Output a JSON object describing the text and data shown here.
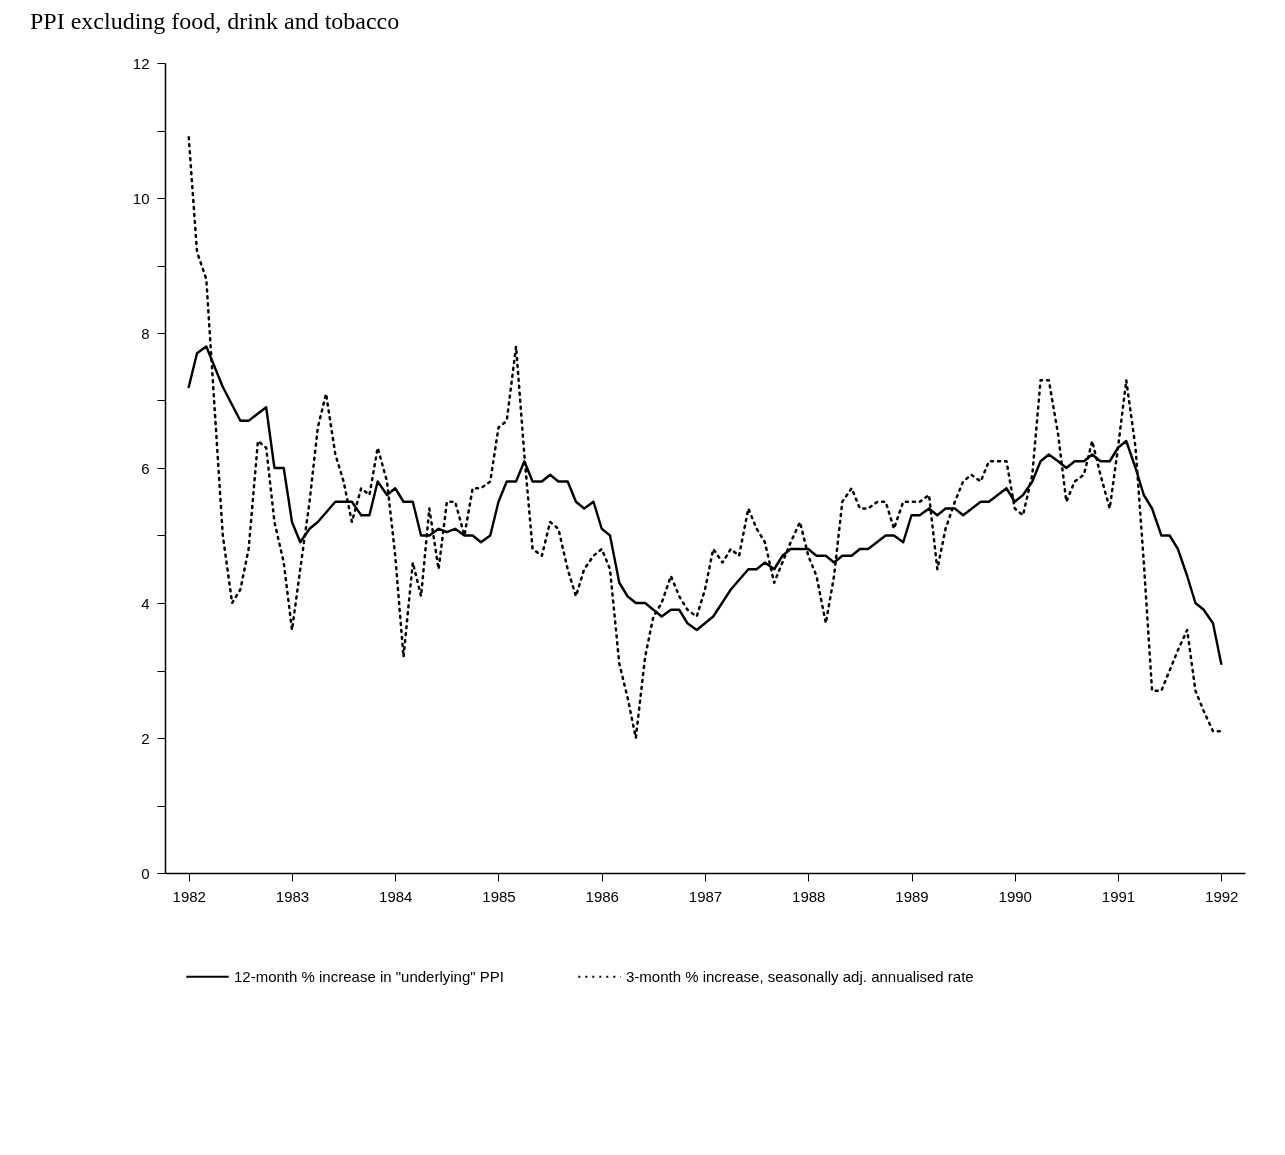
{
  "chart_data": {
    "type": "line",
    "title": "PPI excluding food, drink and tobacco",
    "xlim": [
      1981.77,
      1992.23
    ],
    "xticks": [
      1982,
      1983,
      1984,
      1985,
      1986,
      1987,
      1988,
      1989,
      1990,
      1991,
      1992
    ],
    "ylim": [
      0,
      12
    ],
    "yticks": [
      0,
      {
        "value": 1,
        "label": null
      },
      2,
      {
        "value": 3,
        "label": null
      },
      4,
      {
        "value": 5,
        "label": null
      },
      6,
      {
        "value": 7,
        "label": null
      },
      8,
      {
        "value": 9,
        "label": null
      },
      10,
      {
        "value": 11,
        "label": null
      },
      12
    ],
    "grid": false,
    "legend": "bottom",
    "marker": "none",
    "series": [
      {
        "name": "12-month % increase in \"underlying\" PPI",
        "color": "#000000",
        "line_style": "solid",
        "x": [
          1982.0,
          1982.08,
          1982.17,
          1982.33,
          1982.5,
          1982.58,
          1982.75,
          1982.83,
          1982.92,
          1983.0,
          1983.08,
          1983.17,
          1983.25,
          1983.42,
          1983.58,
          1983.67,
          1983.75,
          1983.83,
          1983.92,
          1984.0,
          1984.08,
          1984.17,
          1984.25,
          1984.33,
          1984.42,
          1984.5,
          1984.58,
          1984.67,
          1984.75,
          1984.83,
          1984.92,
          1985.0,
          1985.08,
          1985.17,
          1985.25,
          1985.33,
          1985.42,
          1985.5,
          1985.58,
          1985.67,
          1985.75,
          1985.83,
          1985.92,
          1986.0,
          1986.08,
          1986.17,
          1986.25,
          1986.33,
          1986.42,
          1986.5,
          1986.58,
          1986.67,
          1986.75,
          1986.83,
          1986.92,
          1987.0,
          1987.08,
          1987.25,
          1987.42,
          1987.5,
          1987.58,
          1987.67,
          1987.75,
          1987.83,
          1988.0,
          1988.08,
          1988.17,
          1988.25,
          1988.33,
          1988.42,
          1988.5,
          1988.58,
          1988.75,
          1988.83,
          1988.92,
          1989.0,
          1989.08,
          1989.17,
          1989.25,
          1989.33,
          1989.42,
          1989.5,
          1989.67,
          1989.75,
          1989.92,
          1990.0,
          1990.08,
          1990.17,
          1990.25,
          1990.33,
          1990.42,
          1990.5,
          1990.58,
          1990.67,
          1990.75,
          1990.83,
          1990.92,
          1991.0,
          1991.08,
          1991.17,
          1991.25,
          1991.33,
          1991.42,
          1991.5,
          1991.58,
          1991.67,
          1991.75,
          1991.83,
          1991.92,
          1992.0
        ],
        "values": [
          7.2,
          7.7,
          7.8,
          7.2,
          6.7,
          6.7,
          6.9,
          6.0,
          6.0,
          5.2,
          4.9,
          5.1,
          5.2,
          5.5,
          5.5,
          5.3,
          5.3,
          5.8,
          5.6,
          5.7,
          5.5,
          5.5,
          5.0,
          5.0,
          5.1,
          5.05,
          5.1,
          5.0,
          5.0,
          4.9,
          5.0,
          5.5,
          5.8,
          5.8,
          6.1,
          5.8,
          5.8,
          5.9,
          5.8,
          5.8,
          5.5,
          5.4,
          5.5,
          5.1,
          5.0,
          4.3,
          4.1,
          4.0,
          4.0,
          3.9,
          3.8,
          3.9,
          3.9,
          3.7,
          3.6,
          3.7,
          3.8,
          4.2,
          4.5,
          4.5,
          4.6,
          4.5,
          4.7,
          4.8,
          4.8,
          4.7,
          4.7,
          4.6,
          4.7,
          4.7,
          4.8,
          4.8,
          5.0,
          5.0,
          4.9,
          5.3,
          5.3,
          5.4,
          5.3,
          5.4,
          5.4,
          5.3,
          5.5,
          5.5,
          5.7,
          5.5,
          5.6,
          5.8,
          6.1,
          6.2,
          6.1,
          6.0,
          6.1,
          6.1,
          6.2,
          6.1,
          6.1,
          6.3,
          6.4,
          6.0,
          5.6,
          5.4,
          5.0,
          5.0,
          4.8,
          4.4,
          4.0,
          3.9,
          3.7,
          3.1
        ]
      },
      {
        "name": "3-month % increase, seasonally adj. annualised rate",
        "color": "#000000",
        "line_style": "dotted",
        "x": [
          1982.0,
          1982.08,
          1982.17,
          1982.25,
          1982.33,
          1982.42,
          1982.5,
          1982.58,
          1982.67,
          1982.75,
          1982.83,
          1982.92,
          1983.0,
          1983.08,
          1983.17,
          1983.25,
          1983.33,
          1983.42,
          1983.5,
          1983.58,
          1983.67,
          1983.75,
          1983.83,
          1983.92,
          1984.0,
          1984.08,
          1984.17,
          1984.25,
          1984.33,
          1984.42,
          1984.5,
          1984.58,
          1984.67,
          1984.75,
          1984.83,
          1984.92,
          1985.0,
          1985.08,
          1985.17,
          1985.25,
          1985.33,
          1985.42,
          1985.5,
          1985.58,
          1985.67,
          1985.75,
          1985.83,
          1985.92,
          1986.0,
          1986.08,
          1986.17,
          1986.25,
          1986.33,
          1986.42,
          1986.5,
          1986.58,
          1986.67,
          1986.75,
          1986.83,
          1986.92,
          1987.0,
          1987.08,
          1987.17,
          1987.25,
          1987.33,
          1987.42,
          1987.5,
          1987.58,
          1987.67,
          1987.75,
          1987.83,
          1987.92,
          1988.0,
          1988.08,
          1988.17,
          1988.25,
          1988.33,
          1988.42,
          1988.5,
          1988.58,
          1988.67,
          1988.75,
          1988.83,
          1988.92,
          1989.0,
          1989.08,
          1989.17,
          1989.25,
          1989.33,
          1989.42,
          1989.5,
          1989.58,
          1989.67,
          1989.75,
          1989.83,
          1989.92,
          1990.0,
          1990.08,
          1990.17,
          1990.25,
          1990.33,
          1990.42,
          1990.5,
          1990.58,
          1990.67,
          1990.75,
          1990.83,
          1990.92,
          1991.0,
          1991.08,
          1991.17,
          1991.25,
          1991.33,
          1991.42,
          1991.5,
          1991.58,
          1991.67,
          1991.75,
          1991.83,
          1991.92,
          1992.0
        ],
        "values": [
          10.9,
          9.2,
          8.8,
          6.9,
          5.0,
          4.0,
          4.2,
          4.8,
          6.4,
          6.3,
          5.2,
          4.6,
          3.6,
          4.5,
          5.5,
          6.6,
          7.1,
          6.2,
          5.8,
          5.2,
          5.7,
          5.6,
          6.3,
          5.8,
          4.7,
          3.2,
          4.6,
          4.1,
          5.4,
          4.5,
          5.5,
          5.5,
          5.0,
          5.7,
          5.7,
          5.8,
          6.6,
          6.7,
          7.8,
          6.2,
          4.8,
          4.7,
          5.2,
          5.1,
          4.5,
          4.1,
          4.5,
          4.7,
          4.8,
          4.5,
          3.1,
          2.6,
          2.0,
          3.2,
          3.8,
          4.0,
          4.4,
          4.1,
          3.9,
          3.8,
          4.2,
          4.8,
          4.6,
          4.8,
          4.7,
          5.4,
          5.1,
          4.9,
          4.3,
          4.6,
          4.9,
          5.2,
          4.7,
          4.4,
          3.7,
          4.4,
          5.5,
          5.7,
          5.4,
          5.4,
          5.5,
          5.5,
          5.1,
          5.5,
          5.5,
          5.5,
          5.6,
          4.5,
          5.1,
          5.5,
          5.8,
          5.9,
          5.8,
          6.1,
          6.1,
          6.1,
          5.4,
          5.3,
          5.9,
          7.3,
          7.3,
          6.5,
          5.5,
          5.8,
          5.9,
          6.4,
          5.9,
          5.4,
          6.3,
          7.3,
          6.3,
          4.6,
          2.7,
          2.7,
          3.0,
          3.3,
          3.6,
          2.7,
          2.4,
          2.1,
          2.1
        ]
      }
    ]
  }
}
